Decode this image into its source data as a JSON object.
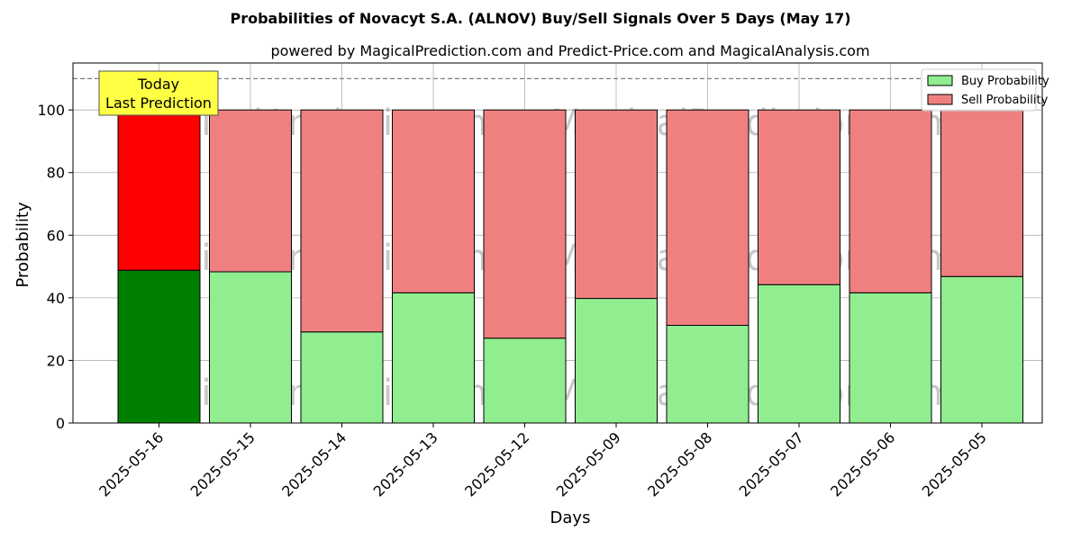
{
  "chart_data": {
    "type": "bar",
    "title": "Probabilities of Novacyt S.A. (ALNOV) Buy/Sell Signals Over 5 Days (May 17)",
    "subtitle": "powered by MagicalPrediction.com and Predict-Price.com and MagicalAnalysis.com",
    "xlabel": "Days",
    "ylabel": "Probability",
    "ylim": [
      0,
      115
    ],
    "yticks": [
      0,
      20,
      40,
      60,
      80,
      100
    ],
    "grid": true,
    "legend_position": "top-right",
    "stacked": true,
    "categories": [
      "2025-05-16",
      "2025-05-15",
      "2025-05-14",
      "2025-05-13",
      "2025-05-12",
      "2025-05-09",
      "2025-05-08",
      "2025-05-07",
      "2025-05-06",
      "2025-05-05"
    ],
    "series": [
      {
        "name": "Buy Probability",
        "color": "#90ee90",
        "highlight_color": "#008000",
        "values": [
          48.8,
          48.3,
          29.1,
          41.6,
          27.1,
          39.8,
          31.2,
          44.2,
          41.6,
          46.8
        ]
      },
      {
        "name": "Sell Probability",
        "color": "#f08080",
        "highlight_color": "#ff0000",
        "values": [
          51.2,
          51.7,
          70.9,
          58.4,
          72.9,
          60.2,
          68.8,
          55.8,
          58.4,
          53.2
        ]
      }
    ],
    "reference_line": {
      "y": 110,
      "style": "dashed",
      "color": "#808080"
    },
    "annotation": {
      "lines": [
        "Today",
        "Last Prediction"
      ],
      "category": "2025-05-16",
      "background": "#ffff44"
    },
    "watermarks": [
      "MagicalAnalysis.com",
      "MagicalPrediction.com"
    ]
  }
}
